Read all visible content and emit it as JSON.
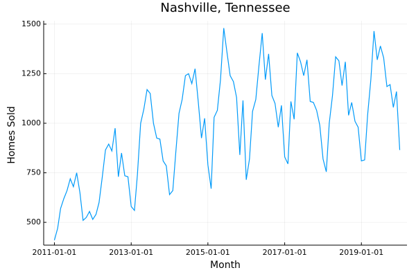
{
  "chart_data": {
    "type": "line",
    "title": "Nashville, Tennessee",
    "x_label": "Month",
    "y_label": "Homes Sold",
    "x": [
      "2011-01-01",
      "2011-02-01",
      "2011-03-01",
      "2011-04-01",
      "2011-05-01",
      "2011-06-01",
      "2011-07-01",
      "2011-08-01",
      "2011-09-01",
      "2011-10-01",
      "2011-11-01",
      "2011-12-01",
      "2012-01-01",
      "2012-02-01",
      "2012-03-01",
      "2012-04-01",
      "2012-05-01",
      "2012-06-01",
      "2012-07-01",
      "2012-08-01",
      "2012-09-01",
      "2012-10-01",
      "2012-11-01",
      "2012-12-01",
      "2013-01-01",
      "2013-02-01",
      "2013-03-01",
      "2013-04-01",
      "2013-05-01",
      "2013-06-01",
      "2013-07-01",
      "2013-08-01",
      "2013-09-01",
      "2013-10-01",
      "2013-11-01",
      "2013-12-01",
      "2014-01-01",
      "2014-02-01",
      "2014-03-01",
      "2014-04-01",
      "2014-05-01",
      "2014-06-01",
      "2014-07-01",
      "2014-08-01",
      "2014-09-01",
      "2014-10-01",
      "2014-11-01",
      "2014-12-01",
      "2015-01-01",
      "2015-02-01",
      "2015-03-01",
      "2015-04-01",
      "2015-05-01",
      "2015-06-01",
      "2015-07-01",
      "2015-08-01",
      "2015-09-01",
      "2015-10-01",
      "2015-11-01",
      "2015-12-01",
      "2016-01-01",
      "2016-02-01",
      "2016-03-01",
      "2016-04-01",
      "2016-05-01",
      "2016-06-01",
      "2016-07-01",
      "2016-08-01",
      "2016-09-01",
      "2016-10-01",
      "2016-11-01",
      "2016-12-01",
      "2017-01-01",
      "2017-02-01",
      "2017-03-01",
      "2017-04-01",
      "2017-05-01",
      "2017-06-01",
      "2017-07-01",
      "2017-08-01",
      "2017-09-01",
      "2017-10-01",
      "2017-11-01",
      "2017-12-01",
      "2018-01-01",
      "2018-02-01",
      "2018-03-01",
      "2018-04-01",
      "2018-05-01",
      "2018-06-01",
      "2018-07-01",
      "2018-08-01",
      "2018-09-01",
      "2018-10-01",
      "2018-11-01",
      "2018-12-01",
      "2019-01-01",
      "2019-02-01",
      "2019-03-01",
      "2019-04-01",
      "2019-05-01",
      "2019-06-01",
      "2019-07-01",
      "2019-08-01",
      "2019-09-01",
      "2019-10-01",
      "2019-11-01",
      "2019-12-01",
      "2020-01-01"
    ],
    "series": [
      {
        "color": "#009af9",
        "values": [
          410,
          470,
          570,
          620,
          660,
          720,
          680,
          750,
          650,
          510,
          525,
          555,
          515,
          540,
          600,
          730,
          865,
          895,
          860,
          975,
          730,
          850,
          735,
          730,
          580,
          560,
          740,
          1000,
          1070,
          1170,
          1150,
          1000,
          925,
          920,
          810,
          785,
          640,
          660,
          850,
          1050,
          1120,
          1240,
          1250,
          1200,
          1275,
          1110,
          925,
          1025,
          790,
          670,
          1030,
          1065,
          1220,
          1480,
          1360,
          1240,
          1210,
          1130,
          840,
          1115,
          715,
          820,
          1060,
          1120,
          1290,
          1455,
          1220,
          1350,
          1140,
          1100,
          980,
          1090,
          830,
          795,
          1110,
          1020,
          1355,
          1310,
          1240,
          1320,
          1110,
          1105,
          1065,
          990,
          820,
          755,
          1000,
          1140,
          1335,
          1315,
          1190,
          1310,
          1040,
          1105,
          1010,
          980,
          810,
          815,
          1040,
          1220,
          1465,
          1320,
          1390,
          1330,
          1185,
          1195,
          1080,
          1160,
          865
        ]
      }
    ],
    "xlim": [
      "2010-09-21",
      "2020-03-10"
    ],
    "xticks": [
      "2011-01-01",
      "2013-01-01",
      "2015-01-01",
      "2017-01-01",
      "2019-01-01"
    ],
    "ylim": [
      385,
      1517
    ],
    "yticks": [
      500,
      750,
      1000,
      1250,
      1500
    ],
    "grid": true
  }
}
